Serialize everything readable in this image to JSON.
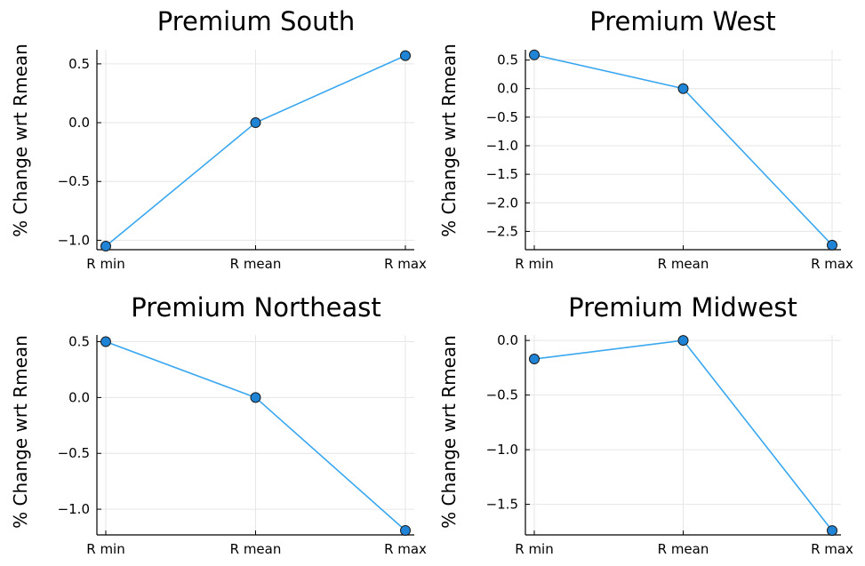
{
  "figure": {
    "series_color": "#39a7f0",
    "marker_color": "#1f83d6"
  },
  "chart_data": [
    {
      "type": "line",
      "title": "Premium South",
      "xlabel": "",
      "ylabel": "% Change wrt Rmean",
      "categories": [
        "R min",
        "R mean",
        "R max"
      ],
      "values": [
        -1.05,
        0.0,
        0.57
      ],
      "ylim": [
        -1.08,
        0.62
      ],
      "yticks": [
        0.5,
        0.0,
        -0.5,
        -1.0
      ],
      "ytick_labels": [
        "0.5",
        "0.0",
        "−0.5",
        "−1.0"
      ],
      "grid": true
    },
    {
      "type": "line",
      "title": "Premium West",
      "xlabel": "",
      "ylabel": "% Change wrt Rmean",
      "categories": [
        "R min",
        "R mean",
        "R max"
      ],
      "values": [
        0.59,
        0.0,
        -2.74
      ],
      "ylim": [
        -2.82,
        0.68
      ],
      "yticks": [
        0.5,
        0.0,
        -0.5,
        -1.0,
        -1.5,
        -2.0,
        -2.5
      ],
      "ytick_labels": [
        "0.5",
        "0.0",
        "−0.5",
        "−1.0",
        "−1.5",
        "−2.0",
        "−2.5"
      ],
      "grid": true
    },
    {
      "type": "line",
      "title": "Premium Northeast",
      "xlabel": "",
      "ylabel": "% Change wrt Rmean",
      "categories": [
        "R min",
        "R mean",
        "R max"
      ],
      "values": [
        0.5,
        0.0,
        -1.19
      ],
      "ylim": [
        -1.23,
        0.56
      ],
      "yticks": [
        0.5,
        0.0,
        -0.5,
        -1.0
      ],
      "ytick_labels": [
        "0.5",
        "0.0",
        "−0.5",
        "−1.0"
      ],
      "grid": true
    },
    {
      "type": "line",
      "title": "Premium Midwest",
      "xlabel": "",
      "ylabel": "% Change wrt Rmean",
      "categories": [
        "R min",
        "R mean",
        "R max"
      ],
      "values": [
        -0.17,
        0.0,
        -1.74
      ],
      "ylim": [
        -1.78,
        0.05
      ],
      "yticks": [
        0.0,
        -0.5,
        -1.0,
        -1.5
      ],
      "ytick_labels": [
        "0.0",
        "−0.5",
        "−1.0",
        "−1.5"
      ],
      "grid": true
    }
  ]
}
